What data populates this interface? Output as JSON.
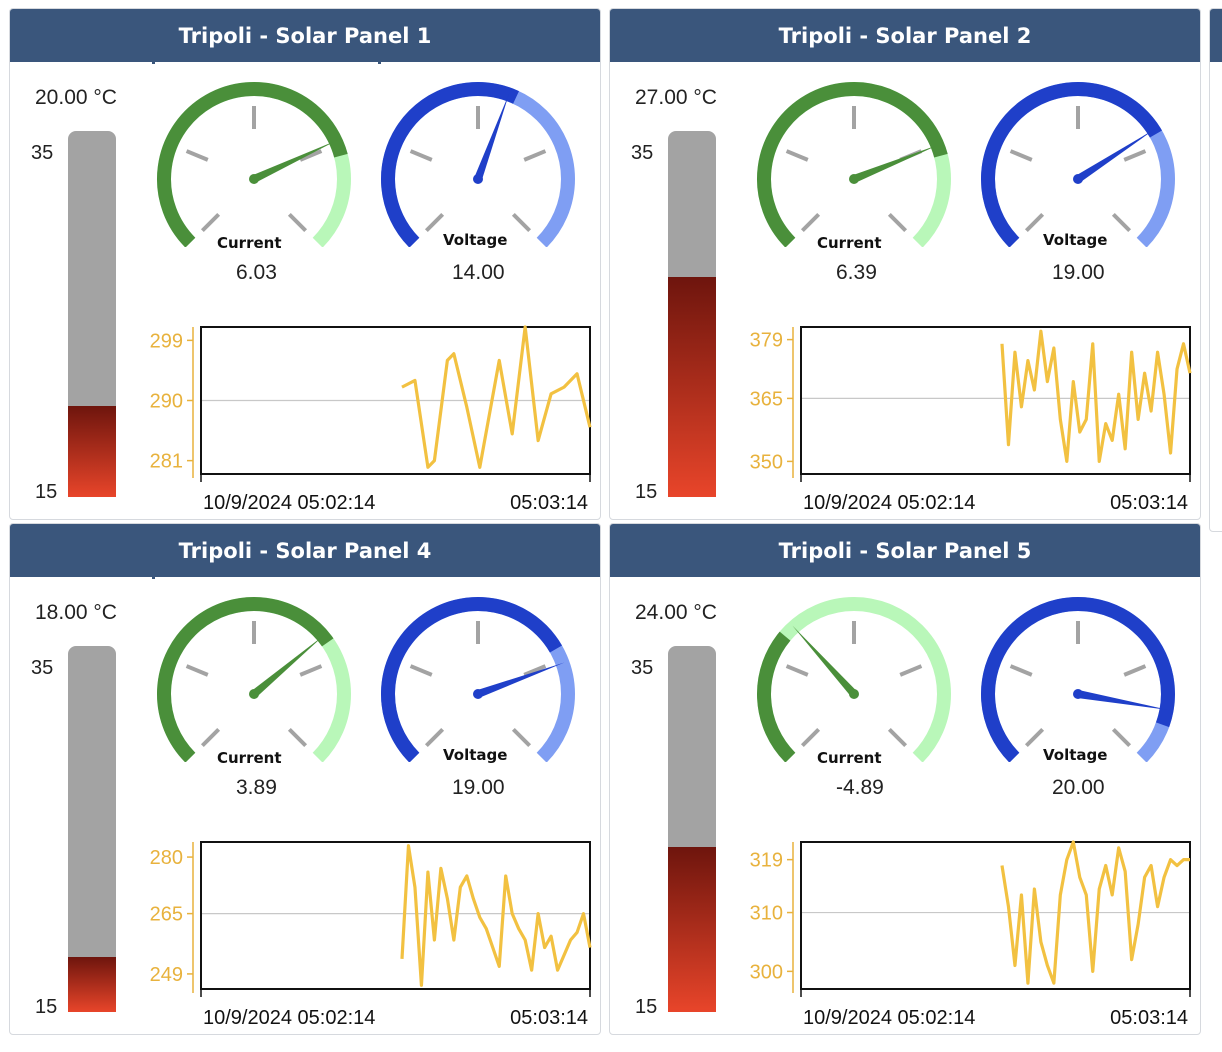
{
  "panels": [
    {
      "title": "Tripoli - Solar Panel 1",
      "temperature": {
        "label": "20.00 °C",
        "value": 20.0,
        "min": 15,
        "max": 35,
        "min_label": "15",
        "max_label": "35"
      },
      "current": {
        "title": "Current",
        "value_label": "6.03",
        "needle_angle_deg": 65,
        "threshold_angle_deg": 75
      },
      "voltage": {
        "title": "Voltage",
        "value_label": "14.00",
        "needle_angle_deg": 20,
        "threshold_angle_deg": 25
      },
      "chart_data": {
        "type": "line",
        "yticks": [
          "299",
          "290",
          "281"
        ],
        "ylim": [
          279,
          301
        ],
        "ytick_values": [
          299,
          290,
          281
        ],
        "x_start_label": "10/9/2024 05:02:14",
        "x_end_label": "05:03:14",
        "x": [
          31,
          33,
          35,
          36,
          38,
          39,
          41,
          43,
          46,
          48,
          50,
          52,
          54,
          56,
          58,
          60
        ],
        "values": [
          292,
          293,
          280,
          281,
          296,
          297,
          289,
          280,
          296,
          285,
          301,
          284,
          291,
          292,
          294,
          286
        ]
      }
    },
    {
      "title": "Tripoli - Solar Panel 2",
      "temperature": {
        "label": "27.00 °C",
        "value": 27.0,
        "min": 15,
        "max": 35,
        "min_label": "15",
        "max_label": "35"
      },
      "current": {
        "title": "Current",
        "value_label": "6.39",
        "needle_angle_deg": 68,
        "threshold_angle_deg": 75
      },
      "voltage": {
        "title": "Voltage",
        "value_label": "19.00",
        "needle_angle_deg": 57,
        "threshold_angle_deg": 60
      },
      "chart_data": {
        "type": "line",
        "yticks": [
          "379",
          "365",
          "350"
        ],
        "ylim": [
          347,
          382
        ],
        "ytick_values": [
          379,
          365,
          350
        ],
        "x_start_label": "10/9/2024 05:02:14",
        "x_end_label": "05:03:14",
        "x": [
          31,
          32,
          33,
          34,
          35,
          36,
          37,
          38,
          39,
          40,
          41,
          42,
          43,
          44,
          45,
          46,
          47,
          48,
          49,
          50,
          51,
          52,
          53,
          54,
          55,
          56,
          57,
          58,
          59,
          60
        ],
        "values": [
          378,
          354,
          376,
          363,
          374,
          367,
          381,
          369,
          377,
          360,
          350,
          369,
          357,
          360,
          378,
          350,
          359,
          355,
          366,
          353,
          376,
          360,
          371,
          362,
          376,
          366,
          352,
          372,
          378,
          371
        ]
      }
    },
    {
      "title": "Tripoli - Solar Panel 4",
      "temperature": {
        "label": "18.00 °C",
        "value": 18.0,
        "min": 15,
        "max": 35,
        "min_label": "15",
        "max_label": "35"
      },
      "current": {
        "title": "Current",
        "value_label": "3.89",
        "needle_angle_deg": 50,
        "threshold_angle_deg": 55
      },
      "voltage": {
        "title": "Voltage",
        "value_label": "19.00",
        "needle_angle_deg": 70,
        "threshold_angle_deg": 60
      },
      "chart_data": {
        "type": "line",
        "yticks": [
          "280",
          "265",
          "249"
        ],
        "ylim": [
          245,
          284
        ],
        "ytick_values": [
          280,
          265,
          249
        ],
        "x_start_label": "10/9/2024 05:02:14",
        "x_end_label": "05:03:14",
        "x": [
          31,
          32,
          33,
          34,
          35,
          36,
          37,
          38,
          39,
          40,
          41,
          42,
          43,
          44,
          45,
          46,
          47,
          48,
          49,
          50,
          51,
          52,
          53,
          54,
          55,
          56,
          57,
          58,
          59,
          60
        ],
        "values": [
          253,
          283,
          272,
          246,
          276,
          258,
          277,
          269,
          258,
          272,
          275,
          269,
          264,
          261,
          256,
          251,
          275,
          265,
          261,
          258,
          250,
          265,
          256,
          259,
          250,
          254,
          258,
          260,
          265,
          256
        ]
      }
    },
    {
      "title": "Tripoli - Solar Panel 5",
      "temperature": {
        "label": "24.00 °C",
        "value": 24.0,
        "min": 15,
        "max": 35,
        "min_label": "15",
        "max_label": "35"
      },
      "current": {
        "title": "Current",
        "value_label": "-4.89",
        "needle_angle_deg": -42,
        "threshold_angle_deg": -50
      },
      "voltage": {
        "title": "Voltage",
        "value_label": "20.00",
        "needle_angle_deg": 100,
        "threshold_angle_deg": 110
      },
      "chart_data": {
        "type": "line",
        "yticks": [
          "319",
          "310",
          "300"
        ],
        "ylim": [
          297,
          322
        ],
        "ytick_values": [
          319,
          310,
          300
        ],
        "x_start_label": "10/9/2024 05:02:14",
        "x_end_label": "05:03:14",
        "x": [
          31,
          32,
          33,
          34,
          35,
          36,
          37,
          38,
          39,
          40,
          41,
          42,
          43,
          44,
          45,
          46,
          47,
          48,
          49,
          50,
          51,
          52,
          53,
          54,
          55,
          56,
          57,
          58,
          59,
          60
        ],
        "values": [
          318,
          311,
          301,
          313,
          298,
          314,
          305,
          301,
          298,
          313,
          319,
          322,
          316,
          313,
          300,
          314,
          318,
          313,
          321,
          317,
          302,
          308,
          316,
          318,
          311,
          316,
          319,
          318,
          319,
          319
        ]
      }
    }
  ],
  "colors": {
    "header_bg": "#3a567c",
    "current_dark": "#4a8f3a",
    "current_light": "#b9f7b9",
    "voltage_dark": "#1f3fc9",
    "voltage_light": "#7f9ef3",
    "spark_line": "#f2c141",
    "spark_axis_label": "#e8b23d"
  }
}
